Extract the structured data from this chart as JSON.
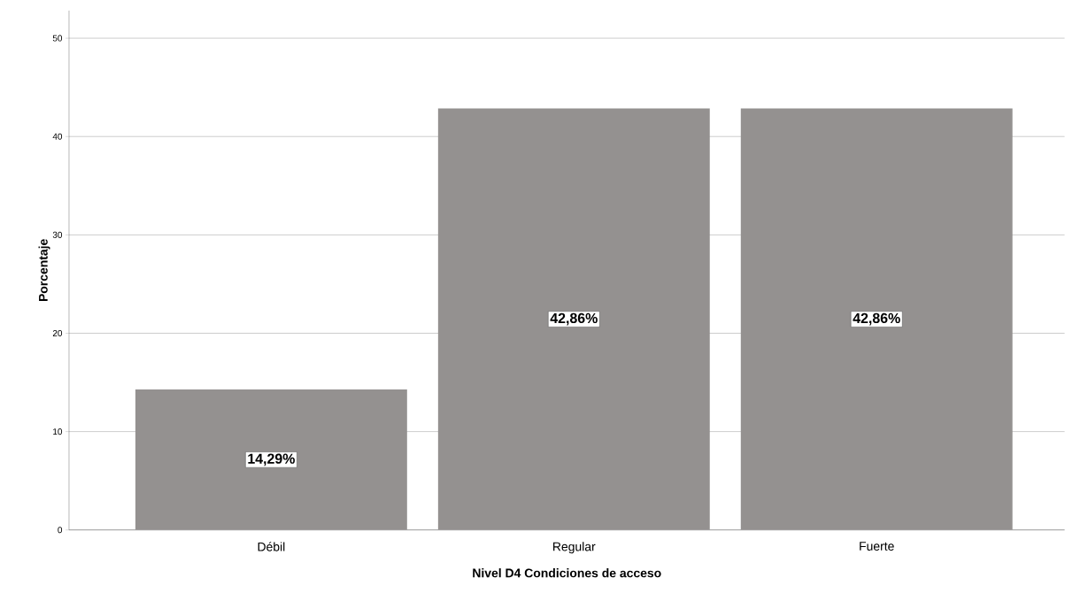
{
  "chart_data": {
    "type": "bar",
    "xlabel": "Nivel D4 Condiciones de acceso",
    "ylabel": "Porcentaje",
    "categories": [
      "Débil",
      "Regular",
      "Fuerte"
    ],
    "values": [
      14.29,
      42.86,
      42.86
    ],
    "value_labels": [
      "14,29%",
      "42,86%",
      "42,86%"
    ],
    "color": "#949190",
    "ylim": [
      0,
      52.8
    ],
    "yticks": [
      0,
      10,
      20,
      30,
      40,
      50
    ],
    "grid": "y"
  }
}
